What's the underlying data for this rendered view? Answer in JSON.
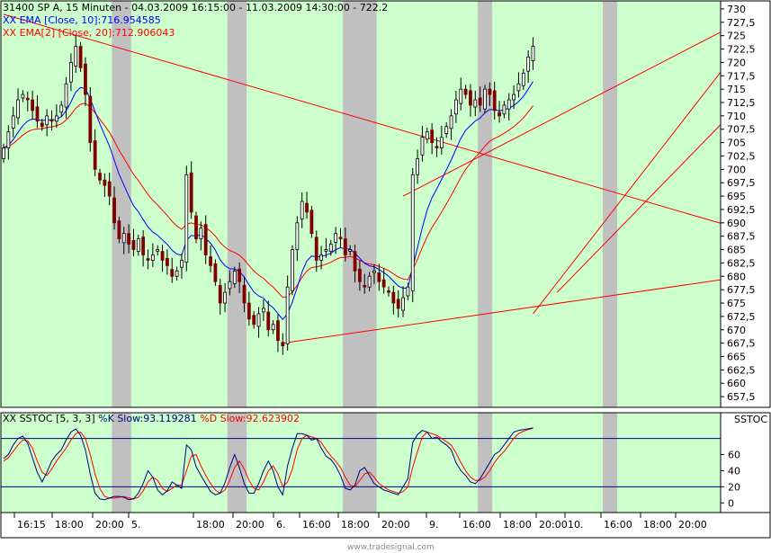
{
  "header": {
    "title": "31400  SP A, 15 Minuten - 04.03.2009 16:15:00 - 11.03.2009 14:30:00 - 722.2"
  },
  "legend": {
    "ema10": "XX EMA [Close, 10]:716.954585",
    "ema20": "XX EMA[2] [Close, 20]:712.906043",
    "ssto_prefix": "XX SSTOC [5, 3, 3] ",
    "ssto_k": "%K Slow:93.119281",
    "ssto_d": "%D Slow:92.623902",
    "ssto_tag": "SSTOC"
  },
  "watermark": "www.tradesignal.com",
  "colors": {
    "session_band": "#ccffcc",
    "session_gap": "#c0c0c0",
    "ema10": "#0000ff",
    "ema20": "#ff0000",
    "trendline": "#ff0000",
    "candle_up": "#ffffff",
    "candle_down": "#800000",
    "ssto_k": "#000080",
    "ssto_d": "#ff0000"
  },
  "x_axis": {
    "labels": [
      "16:15",
      "18:00",
      "20:00",
      "5.",
      "18:00",
      "20:00",
      "6.",
      "16:00",
      "18:00",
      "20:00",
      "9.",
      "16:00",
      "18:00",
      "20:00",
      "10.",
      "16:00",
      "18:00",
      "20:00"
    ]
  },
  "chart_data": [
    {
      "type": "candlestick",
      "title": "31400  SP A, 15 Minuten",
      "y_ticks": [
        "730",
        "727,5",
        "725",
        "722,5",
        "720",
        "717,5",
        "715",
        "712,5",
        "710",
        "707,5",
        "705",
        "702,5",
        "700",
        "697,5",
        "695",
        "692,5",
        "690",
        "687,5",
        "685",
        "682,5",
        "680",
        "677,5",
        "675",
        "672,5",
        "670",
        "667,5",
        "665",
        "662,5",
        "660",
        "657,5"
      ],
      "y_axis_position": "right",
      "ylim": [
        655.5,
        731.5
      ],
      "session_bands": [
        [
          0,
          22
        ],
        [
          27,
          46
        ],
        [
          51,
          70
        ],
        [
          78,
          98
        ],
        [
          102,
          124
        ],
        [
          128,
          150
        ]
      ],
      "closes": [
        704,
        707,
        710,
        713,
        714,
        713,
        711,
        709,
        708,
        710,
        709,
        710,
        712,
        716,
        720,
        723,
        719,
        714,
        705,
        700,
        698,
        697,
        695,
        690,
        687,
        688,
        686,
        685,
        687,
        684,
        683,
        684,
        685,
        683,
        682,
        680,
        681,
        683,
        699,
        692,
        687,
        689,
        684,
        682,
        679,
        675,
        677,
        679,
        681,
        679,
        675,
        672,
        671,
        673,
        674,
        670,
        671,
        668,
        667,
        678,
        685,
        690,
        694,
        692,
        688,
        683,
        684,
        685,
        686,
        688,
        687,
        684,
        685,
        681,
        679,
        678,
        680,
        681,
        679,
        678,
        677,
        675,
        674,
        676,
        678,
        699,
        702,
        706,
        707,
        705,
        704,
        706,
        708,
        710,
        713,
        715,
        714,
        712,
        713,
        712,
        715,
        714,
        711,
        710,
        712,
        713,
        714,
        716,
        718,
        721,
        723
      ],
      "ema10_last": 716.954585,
      "ema20_last": 712.906043,
      "trendlines": [
        {
          "from": [
            0,
            729
          ],
          "to": [
            154,
            688.6
          ]
        },
        {
          "from": [
            83,
            695
          ],
          "to": [
            154,
            728
          ]
        },
        {
          "from": [
            58,
            667.5
          ],
          "to": [
            154,
            680
          ]
        },
        {
          "from": [
            110,
            673
          ],
          "to": [
            154,
            724
          ]
        },
        {
          "from": [
            115,
            677
          ],
          "to": [
            154,
            713
          ]
        }
      ]
    },
    {
      "type": "line",
      "title": "XX SSTOC [5, 3, 3]",
      "y_ticks": [
        "60",
        "40",
        "20",
        "0"
      ],
      "ylim": [
        -12,
        112
      ],
      "reference_lines": [
        20,
        80
      ],
      "series": [
        {
          "name": "%K Slow",
          "values": [
            55,
            60,
            72,
            80,
            83,
            74,
            56,
            38,
            26,
            38,
            52,
            60,
            66,
            78,
            88,
            92,
            84,
            66,
            36,
            12,
            5,
            4,
            6,
            8,
            8,
            7,
            4,
            5,
            12,
            24,
            40,
            32,
            16,
            10,
            15,
            26,
            22,
            18,
            72,
            66,
            45,
            34,
            24,
            14,
            10,
            12,
            25,
            44,
            60,
            44,
            24,
            12,
            12,
            24,
            40,
            52,
            40,
            20,
            10,
            46,
            68,
            86,
            86,
            84,
            78,
            80,
            68,
            58,
            54,
            46,
            34,
            18,
            16,
            22,
            40,
            44,
            34,
            24,
            20,
            16,
            14,
            12,
            10,
            20,
            30,
            75,
            85,
            90,
            88,
            80,
            82,
            76,
            72,
            66,
            50,
            40,
            34,
            26,
            24,
            30,
            40,
            50,
            60,
            64,
            72,
            80,
            88,
            90,
            91,
            92,
            93.119281
          ]
        },
        {
          "name": "%D Slow",
          "values": [
            52,
            56,
            64,
            72,
            78,
            77,
            68,
            52,
            38,
            34,
            42,
            52,
            60,
            68,
            78,
            86,
            88,
            80,
            60,
            36,
            18,
            8,
            6,
            6,
            7,
            8,
            6,
            5,
            7,
            15,
            26,
            32,
            28,
            18,
            14,
            18,
            22,
            22,
            40,
            58,
            60,
            46,
            34,
            24,
            16,
            12,
            16,
            28,
            44,
            52,
            42,
            28,
            18,
            16,
            26,
            40,
            46,
            36,
            20,
            26,
            42,
            66,
            80,
            84,
            82,
            80,
            75,
            66,
            58,
            52,
            44,
            32,
            22,
            20,
            28,
            36,
            38,
            32,
            24,
            20,
            16,
            14,
            12,
            14,
            20,
            44,
            64,
            82,
            88,
            86,
            84,
            80,
            76,
            72,
            62,
            50,
            40,
            32,
            28,
            28,
            32,
            40,
            50,
            58,
            64,
            72,
            80,
            86,
            89,
            91,
            92.623902
          ]
        }
      ]
    }
  ]
}
